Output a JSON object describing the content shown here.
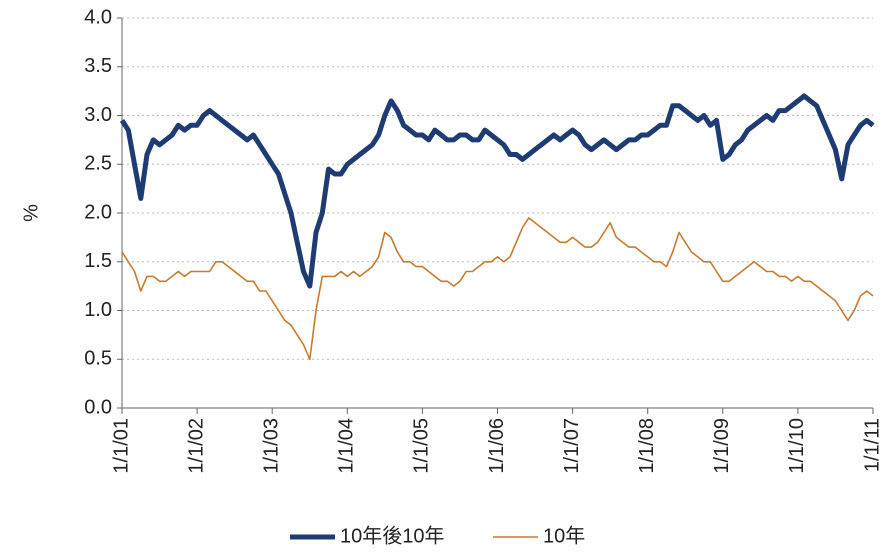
{
  "chart_data": {
    "type": "line",
    "y_label": "%",
    "categories": [
      "1/1/01",
      null,
      null,
      null,
      null,
      null,
      null,
      null,
      null,
      null,
      null,
      null,
      "1/1/02",
      null,
      null,
      null,
      null,
      null,
      null,
      null,
      null,
      null,
      null,
      null,
      "1/1/03",
      null,
      null,
      null,
      null,
      null,
      null,
      null,
      null,
      null,
      null,
      null,
      "1/1/04",
      null,
      null,
      null,
      null,
      null,
      null,
      null,
      null,
      null,
      null,
      null,
      "1/1/05",
      null,
      null,
      null,
      null,
      null,
      null,
      null,
      null,
      null,
      null,
      null,
      "1/1/06",
      null,
      null,
      null,
      null,
      null,
      null,
      null,
      null,
      null,
      null,
      null,
      "1/1/07",
      null,
      null,
      null,
      null,
      null,
      null,
      null,
      null,
      null,
      null,
      null,
      "1/1/08",
      null,
      null,
      null,
      null,
      null,
      null,
      null,
      null,
      null,
      null,
      null,
      "1/1/09",
      null,
      null,
      null,
      null,
      null,
      null,
      null,
      null,
      null,
      null,
      null,
      "1/1/10",
      null,
      null,
      null,
      null,
      null,
      null,
      null,
      null,
      null,
      null,
      null,
      "1/1/11"
    ],
    "series": [
      {
        "name": "10年後10年",
        "color": "#1f3b73",
        "width": 5,
        "values": [
          2.95,
          2.85,
          2.5,
          2.15,
          2.6,
          2.75,
          2.7,
          2.75,
          2.8,
          2.9,
          2.85,
          2.9,
          2.9,
          3.0,
          3.05,
          3.0,
          2.95,
          2.9,
          2.85,
          2.8,
          2.75,
          2.8,
          2.7,
          2.6,
          2.5,
          2.4,
          2.2,
          2.0,
          1.7,
          1.4,
          1.25,
          1.8,
          2.0,
          2.45,
          2.4,
          2.4,
          2.5,
          2.55,
          2.6,
          2.65,
          2.7,
          2.8,
          3.0,
          3.15,
          3.05,
          2.9,
          2.85,
          2.8,
          2.8,
          2.75,
          2.85,
          2.8,
          2.75,
          2.75,
          2.8,
          2.8,
          2.75,
          2.75,
          2.85,
          2.8,
          2.75,
          2.7,
          2.6,
          2.6,
          2.55,
          2.6,
          2.65,
          2.7,
          2.75,
          2.8,
          2.75,
          2.8,
          2.85,
          2.8,
          2.7,
          2.65,
          2.7,
          2.75,
          2.7,
          2.65,
          2.7,
          2.75,
          2.75,
          2.8,
          2.8,
          2.85,
          2.9,
          2.9,
          3.1,
          3.1,
          3.05,
          3.0,
          2.95,
          3.0,
          2.9,
          2.95,
          2.55,
          2.6,
          2.7,
          2.75,
          2.85,
          2.9,
          2.95,
          3.0,
          2.95,
          3.05,
          3.05,
          3.1,
          3.15,
          3.2,
          3.15,
          3.1,
          2.95,
          2.8,
          2.65,
          2.35,
          2.7,
          2.8,
          2.9,
          2.95,
          2.9
        ]
      },
      {
        "name": "10年",
        "color": "#c87a2e",
        "width": 1.6,
        "values": [
          1.6,
          1.5,
          1.4,
          1.2,
          1.35,
          1.35,
          1.3,
          1.3,
          1.35,
          1.4,
          1.35,
          1.4,
          1.4,
          1.4,
          1.4,
          1.5,
          1.5,
          1.45,
          1.4,
          1.35,
          1.3,
          1.3,
          1.2,
          1.2,
          1.1,
          1.0,
          0.9,
          0.85,
          0.75,
          0.65,
          0.5,
          1.0,
          1.35,
          1.35,
          1.35,
          1.4,
          1.35,
          1.4,
          1.35,
          1.4,
          1.45,
          1.55,
          1.8,
          1.75,
          1.6,
          1.5,
          1.5,
          1.45,
          1.45,
          1.4,
          1.35,
          1.3,
          1.3,
          1.25,
          1.3,
          1.4,
          1.4,
          1.45,
          1.5,
          1.5,
          1.55,
          1.5,
          1.55,
          1.7,
          1.85,
          1.95,
          1.9,
          1.85,
          1.8,
          1.75,
          1.7,
          1.7,
          1.75,
          1.7,
          1.65,
          1.65,
          1.7,
          1.8,
          1.9,
          1.75,
          1.7,
          1.65,
          1.65,
          1.6,
          1.55,
          1.5,
          1.5,
          1.45,
          1.6,
          1.8,
          1.7,
          1.6,
          1.55,
          1.5,
          1.5,
          1.4,
          1.3,
          1.3,
          1.35,
          1.4,
          1.45,
          1.5,
          1.45,
          1.4,
          1.4,
          1.35,
          1.35,
          1.3,
          1.35,
          1.3,
          1.3,
          1.25,
          1.2,
          1.15,
          1.1,
          1.0,
          0.9,
          1.0,
          1.15,
          1.2,
          1.15
        ]
      }
    ],
    "ylim": [
      0,
      4
    ],
    "yticks": [
      {
        "value": 0,
        "label": "0.0"
      },
      0.5,
      {
        "value": 1,
        "label": "1.0"
      },
      1.5,
      {
        "value": 2,
        "label": "2.0"
      },
      2.5,
      {
        "value": 3,
        "label": "3.0"
      },
      3.5,
      {
        "value": 4,
        "label": "4.0"
      }
    ],
    "grid": true,
    "legend": "bottom"
  }
}
